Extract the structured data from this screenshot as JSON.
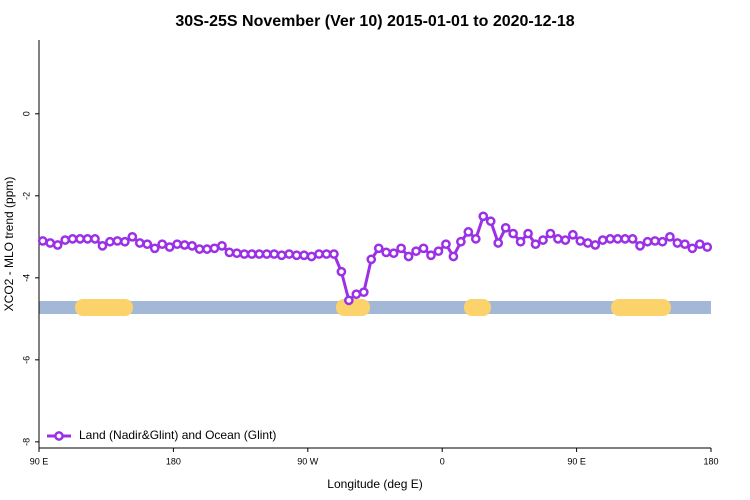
{
  "chart_data": {
    "type": "line",
    "title": "30S-25S November (Ver 10)   2015-01-01 to 2020-12-18",
    "x_label": "Longitude (deg E)",
    "y_label": "XCO2 - MLO trend (ppm)",
    "xlim": [
      90,
      540
    ],
    "ylim": [
      -8.15,
      1.8
    ],
    "xticks": [
      {
        "value": 90,
        "label": "90 E"
      },
      {
        "value": 180,
        "label": "180"
      },
      {
        "value": 270,
        "label": "90 W"
      },
      {
        "value": 360,
        "label": "0"
      },
      {
        "value": 450,
        "label": "90 E"
      },
      {
        "value": 540,
        "label": "180"
      }
    ],
    "yticks": [
      0,
      -2,
      -4,
      -6,
      -8
    ],
    "x": [
      92.5,
      97.5,
      102.5,
      107.5,
      112.5,
      117.5,
      122.5,
      127.5,
      132.5,
      137.5,
      142.5,
      147.5,
      152.5,
      157.5,
      162.5,
      167.5,
      172.5,
      177.5,
      182.5,
      187.5,
      192.5,
      197.5,
      202.5,
      207.5,
      212.5,
      217.5,
      222.5,
      227.5,
      232.5,
      237.5,
      242.5,
      247.5,
      252.5,
      257.5,
      262.5,
      267.5,
      272.5,
      277.5,
      282.5,
      287.5,
      292.5,
      297.5,
      302.5,
      307.5,
      312.5,
      317.5,
      322.5,
      327.5,
      332.5,
      337.5,
      342.5,
      347.5,
      352.5,
      357.5,
      362.5,
      367.5,
      372.5,
      377.5,
      382.5,
      387.5,
      392.5,
      397.5,
      402.5,
      407.5,
      412.5,
      417.5,
      422.5,
      427.5,
      432.5,
      437.5,
      442.5,
      447.5,
      452.5,
      457.5,
      462.5,
      467.5,
      472.5,
      477.5,
      482.5,
      487.5,
      492.5,
      497.5,
      502.5,
      507.5,
      512.5,
      517.5,
      522.5,
      527.5,
      532.5,
      537.5
    ],
    "series": [
      {
        "name": "Land (Nadir&Glint) and Ocean (Glint)",
        "color": "#9b30e6",
        "values": [
          -3.1,
          -3.15,
          -3.2,
          -3.08,
          -3.05,
          -3.05,
          -3.05,
          -3.05,
          -3.22,
          -3.12,
          -3.1,
          -3.12,
          -3.0,
          -3.15,
          -3.18,
          -3.28,
          -3.18,
          -3.25,
          -3.18,
          -3.2,
          -3.22,
          -3.3,
          -3.3,
          -3.28,
          -3.22,
          -3.38,
          -3.4,
          -3.42,
          -3.42,
          -3.42,
          -3.42,
          -3.42,
          -3.45,
          -3.42,
          -3.45,
          -3.45,
          -3.48,
          -3.42,
          -3.42,
          -3.42,
          -3.85,
          -4.55,
          -4.4,
          -4.35,
          -3.55,
          -3.28,
          -3.38,
          -3.4,
          -3.28,
          -3.48,
          -3.35,
          -3.28,
          -3.45,
          -3.35,
          -3.18,
          -3.48,
          -3.12,
          -2.88,
          -3.05,
          -2.5,
          -2.62,
          -3.15,
          -2.78,
          -2.92,
          -3.12,
          -2.92,
          -3.18,
          -3.08,
          -2.92,
          -3.05,
          -3.08,
          -2.95,
          -3.1,
          -3.15,
          -3.2,
          -3.08,
          -3.05,
          -3.05,
          -3.05,
          -3.05,
          -3.22,
          -3.12,
          -3.1,
          -3.12,
          -3.0,
          -3.15,
          -3.18,
          -3.28,
          -3.18,
          -3.25
        ]
      }
    ],
    "legend": "bottom-left"
  }
}
